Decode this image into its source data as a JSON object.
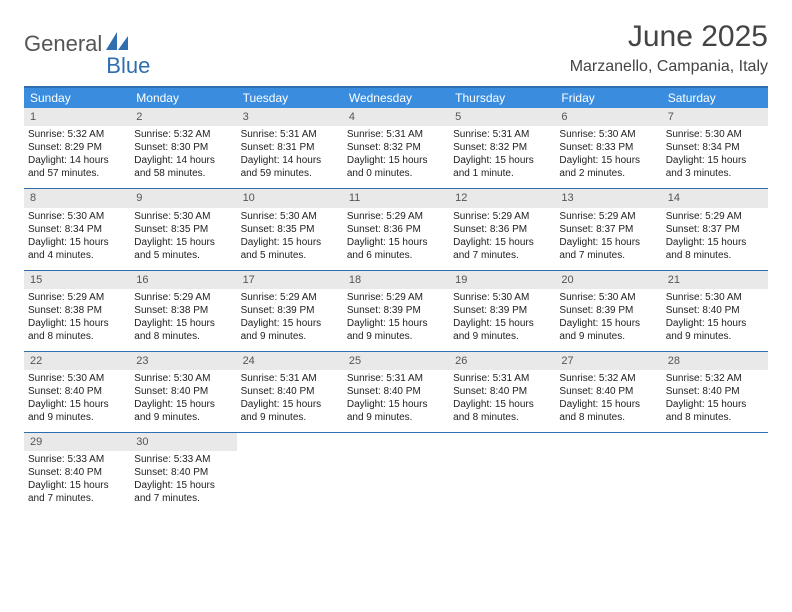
{
  "brand": {
    "text1": "General",
    "text2": "Blue"
  },
  "title": "June 2025",
  "location": "Marzanello, Campania, Italy",
  "colors": {
    "header_bg": "#3a8dde",
    "border": "#2f6fb0",
    "daynum_bg": "#e9e9e9",
    "text": "#222222",
    "title": "#444444"
  },
  "daysOfWeek": [
    "Sunday",
    "Monday",
    "Tuesday",
    "Wednesday",
    "Thursday",
    "Friday",
    "Saturday"
  ],
  "weeks": [
    [
      {
        "n": "1",
        "sr": "Sunrise: 5:32 AM",
        "ss": "Sunset: 8:29 PM",
        "dl": "Daylight: 14 hours and 57 minutes."
      },
      {
        "n": "2",
        "sr": "Sunrise: 5:32 AM",
        "ss": "Sunset: 8:30 PM",
        "dl": "Daylight: 14 hours and 58 minutes."
      },
      {
        "n": "3",
        "sr": "Sunrise: 5:31 AM",
        "ss": "Sunset: 8:31 PM",
        "dl": "Daylight: 14 hours and 59 minutes."
      },
      {
        "n": "4",
        "sr": "Sunrise: 5:31 AM",
        "ss": "Sunset: 8:32 PM",
        "dl": "Daylight: 15 hours and 0 minutes."
      },
      {
        "n": "5",
        "sr": "Sunrise: 5:31 AM",
        "ss": "Sunset: 8:32 PM",
        "dl": "Daylight: 15 hours and 1 minute."
      },
      {
        "n": "6",
        "sr": "Sunrise: 5:30 AM",
        "ss": "Sunset: 8:33 PM",
        "dl": "Daylight: 15 hours and 2 minutes."
      },
      {
        "n": "7",
        "sr": "Sunrise: 5:30 AM",
        "ss": "Sunset: 8:34 PM",
        "dl": "Daylight: 15 hours and 3 minutes."
      }
    ],
    [
      {
        "n": "8",
        "sr": "Sunrise: 5:30 AM",
        "ss": "Sunset: 8:34 PM",
        "dl": "Daylight: 15 hours and 4 minutes."
      },
      {
        "n": "9",
        "sr": "Sunrise: 5:30 AM",
        "ss": "Sunset: 8:35 PM",
        "dl": "Daylight: 15 hours and 5 minutes."
      },
      {
        "n": "10",
        "sr": "Sunrise: 5:30 AM",
        "ss": "Sunset: 8:35 PM",
        "dl": "Daylight: 15 hours and 5 minutes."
      },
      {
        "n": "11",
        "sr": "Sunrise: 5:29 AM",
        "ss": "Sunset: 8:36 PM",
        "dl": "Daylight: 15 hours and 6 minutes."
      },
      {
        "n": "12",
        "sr": "Sunrise: 5:29 AM",
        "ss": "Sunset: 8:36 PM",
        "dl": "Daylight: 15 hours and 7 minutes."
      },
      {
        "n": "13",
        "sr": "Sunrise: 5:29 AM",
        "ss": "Sunset: 8:37 PM",
        "dl": "Daylight: 15 hours and 7 minutes."
      },
      {
        "n": "14",
        "sr": "Sunrise: 5:29 AM",
        "ss": "Sunset: 8:37 PM",
        "dl": "Daylight: 15 hours and 8 minutes."
      }
    ],
    [
      {
        "n": "15",
        "sr": "Sunrise: 5:29 AM",
        "ss": "Sunset: 8:38 PM",
        "dl": "Daylight: 15 hours and 8 minutes."
      },
      {
        "n": "16",
        "sr": "Sunrise: 5:29 AM",
        "ss": "Sunset: 8:38 PM",
        "dl": "Daylight: 15 hours and 8 minutes."
      },
      {
        "n": "17",
        "sr": "Sunrise: 5:29 AM",
        "ss": "Sunset: 8:39 PM",
        "dl": "Daylight: 15 hours and 9 minutes."
      },
      {
        "n": "18",
        "sr": "Sunrise: 5:29 AM",
        "ss": "Sunset: 8:39 PM",
        "dl": "Daylight: 15 hours and 9 minutes."
      },
      {
        "n": "19",
        "sr": "Sunrise: 5:30 AM",
        "ss": "Sunset: 8:39 PM",
        "dl": "Daylight: 15 hours and 9 minutes."
      },
      {
        "n": "20",
        "sr": "Sunrise: 5:30 AM",
        "ss": "Sunset: 8:39 PM",
        "dl": "Daylight: 15 hours and 9 minutes."
      },
      {
        "n": "21",
        "sr": "Sunrise: 5:30 AM",
        "ss": "Sunset: 8:40 PM",
        "dl": "Daylight: 15 hours and 9 minutes."
      }
    ],
    [
      {
        "n": "22",
        "sr": "Sunrise: 5:30 AM",
        "ss": "Sunset: 8:40 PM",
        "dl": "Daylight: 15 hours and 9 minutes."
      },
      {
        "n": "23",
        "sr": "Sunrise: 5:30 AM",
        "ss": "Sunset: 8:40 PM",
        "dl": "Daylight: 15 hours and 9 minutes."
      },
      {
        "n": "24",
        "sr": "Sunrise: 5:31 AM",
        "ss": "Sunset: 8:40 PM",
        "dl": "Daylight: 15 hours and 9 minutes."
      },
      {
        "n": "25",
        "sr": "Sunrise: 5:31 AM",
        "ss": "Sunset: 8:40 PM",
        "dl": "Daylight: 15 hours and 9 minutes."
      },
      {
        "n": "26",
        "sr": "Sunrise: 5:31 AM",
        "ss": "Sunset: 8:40 PM",
        "dl": "Daylight: 15 hours and 8 minutes."
      },
      {
        "n": "27",
        "sr": "Sunrise: 5:32 AM",
        "ss": "Sunset: 8:40 PM",
        "dl": "Daylight: 15 hours and 8 minutes."
      },
      {
        "n": "28",
        "sr": "Sunrise: 5:32 AM",
        "ss": "Sunset: 8:40 PM",
        "dl": "Daylight: 15 hours and 8 minutes."
      }
    ],
    [
      {
        "n": "29",
        "sr": "Sunrise: 5:33 AM",
        "ss": "Sunset: 8:40 PM",
        "dl": "Daylight: 15 hours and 7 minutes."
      },
      {
        "n": "30",
        "sr": "Sunrise: 5:33 AM",
        "ss": "Sunset: 8:40 PM",
        "dl": "Daylight: 15 hours and 7 minutes."
      },
      null,
      null,
      null,
      null,
      null
    ]
  ]
}
